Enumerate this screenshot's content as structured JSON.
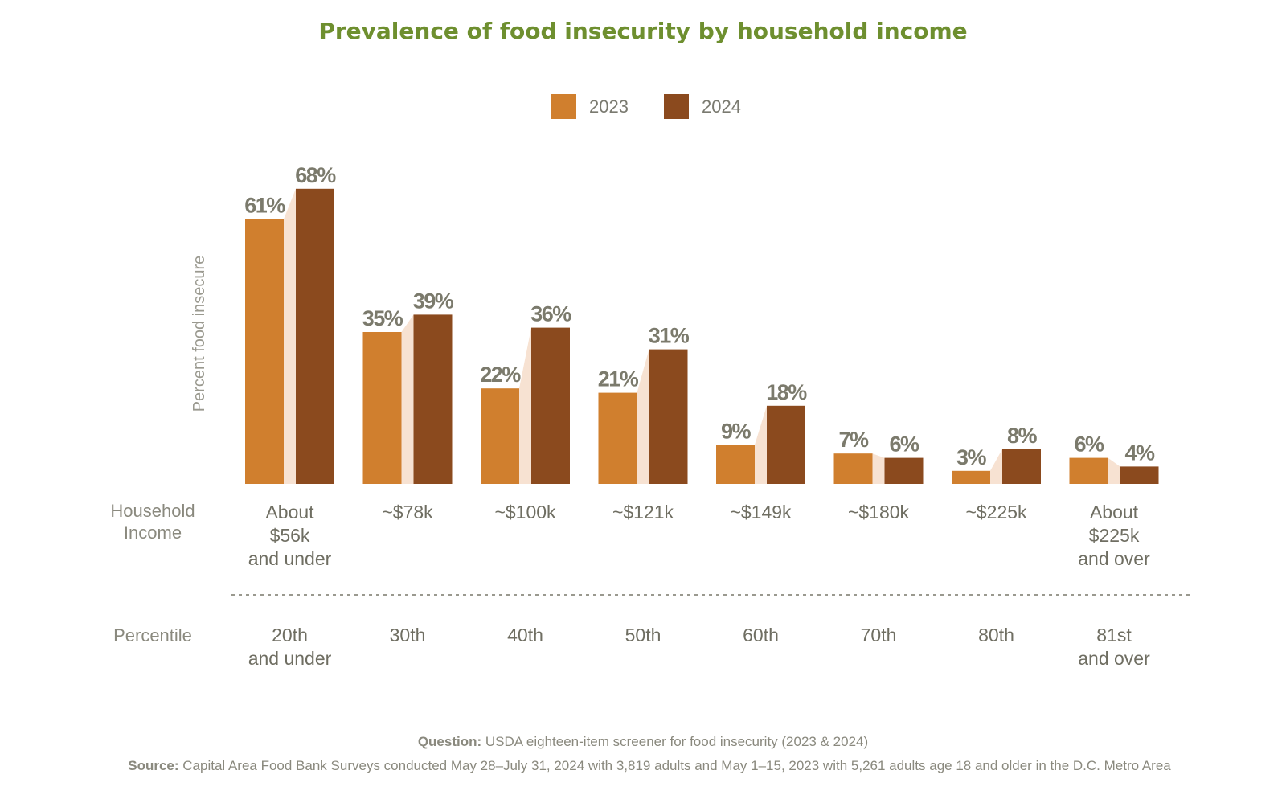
{
  "chart_data": {
    "type": "bar",
    "title": "Prevalence of food insecurity by household income",
    "ylabel": "Percent food insecure",
    "xlabel": "Household Income",
    "ylim": [
      0,
      70
    ],
    "grid": false,
    "legend_position": "top-center",
    "categories": [
      "About $56k and under",
      "~$78k",
      "~$100k",
      "~$121k",
      "~$149k",
      "~$180k",
      "~$225k",
      "About $225k and over"
    ],
    "category_lines": [
      [
        "About",
        "$56k",
        "and under"
      ],
      [
        "~$78k"
      ],
      [
        "~$100k"
      ],
      [
        "~$121k"
      ],
      [
        "~$149k"
      ],
      [
        "~$180k"
      ],
      [
        "~$225k"
      ],
      [
        "About",
        "$225k",
        "and over"
      ]
    ],
    "secondary_row_label": "Percentile",
    "percentiles": [
      [
        "20th",
        "and under"
      ],
      [
        "30th"
      ],
      [
        "40th"
      ],
      [
        "50th"
      ],
      [
        "60th"
      ],
      [
        "70th"
      ],
      [
        "80th"
      ],
      [
        "81st",
        "and over"
      ]
    ],
    "series": [
      {
        "name": "2023",
        "color": "#d07f2e",
        "values": [
          61,
          35,
          22,
          21,
          9,
          7,
          3,
          6
        ]
      },
      {
        "name": "2024",
        "color": "#8b4a1e",
        "values": [
          68,
          39,
          36,
          31,
          18,
          6,
          8,
          4
        ]
      }
    ],
    "value_suffix": "%",
    "connector_color": "#f7e2d2"
  },
  "footer": {
    "question_label": "Question:",
    "question_text": " USDA eighteen-item screener for food insecurity (2023 & 2024)",
    "source_label": "Source:",
    "source_text": " Capital Area Food Bank Surveys conducted May 28–July 31, 2024 with 3,819 adults and May 1–15, 2023 with 5,261 adults age 18 and older in the D.C. Metro Area"
  }
}
